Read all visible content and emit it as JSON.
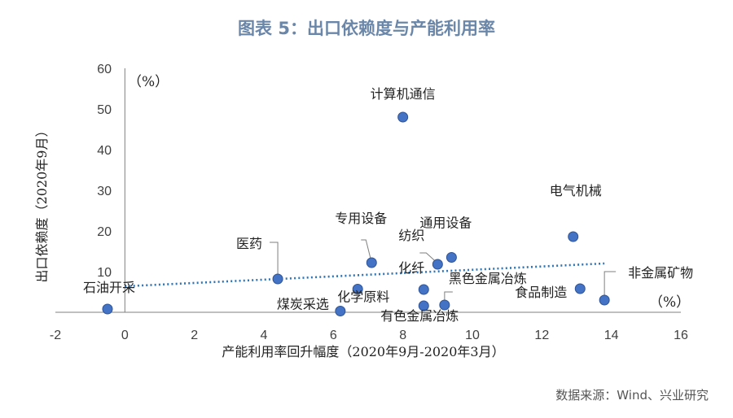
{
  "title": "图表 5：出口依赖度与产能利用率",
  "source": "数据来源：Wind、兴业研究",
  "chart_data": {
    "type": "scatter",
    "title": "图表 5：出口依赖度与产能利用率",
    "xlabel": "产能利用率回升幅度（2020年9月-2020年3月）",
    "ylabel": "出口依赖度（2020年9月）",
    "x_unit": "（%）",
    "y_unit": "（%）",
    "xlim": [
      -2,
      16
    ],
    "ylim": [
      0,
      60
    ],
    "x_ticks": [
      -2,
      0,
      2,
      4,
      6,
      8,
      10,
      12,
      14,
      16
    ],
    "y_ticks": [
      10,
      20,
      30,
      40,
      50,
      60
    ],
    "grid": false,
    "trendline": {
      "type": "linear",
      "style": "dotted",
      "x0": 0,
      "y0": 6.4,
      "x1": 13.8,
      "y1": 12.0
    },
    "points": [
      {
        "name": "计算机通信",
        "x": 8.0,
        "y": 48.0
      },
      {
        "name": "电气机械",
        "x": 12.9,
        "y": 18.6
      },
      {
        "name": "专用设备",
        "x": 7.1,
        "y": 12.2
      },
      {
        "name": "通用设备",
        "x": 9.4,
        "y": 13.5
      },
      {
        "name": "纺织",
        "x": 9.0,
        "y": 11.8
      },
      {
        "name": "医药",
        "x": 4.4,
        "y": 8.2
      },
      {
        "name": "化纤",
        "x": 8.6,
        "y": 5.6
      },
      {
        "name": "化学原料",
        "x": 6.7,
        "y": 5.7
      },
      {
        "name": "黑色金属冶炼",
        "x": 9.2,
        "y": 1.8
      },
      {
        "name": "有色金属冶炼",
        "x": 8.6,
        "y": 1.6
      },
      {
        "name": "非金属矿物",
        "x": 13.8,
        "y": 3.0
      },
      {
        "name": "食品制造",
        "x": 13.1,
        "y": 5.8
      },
      {
        "name": "煤炭采选",
        "x": 6.2,
        "y": 0.3
      },
      {
        "name": "石油开采",
        "x": -0.5,
        "y": 0.8
      }
    ]
  }
}
